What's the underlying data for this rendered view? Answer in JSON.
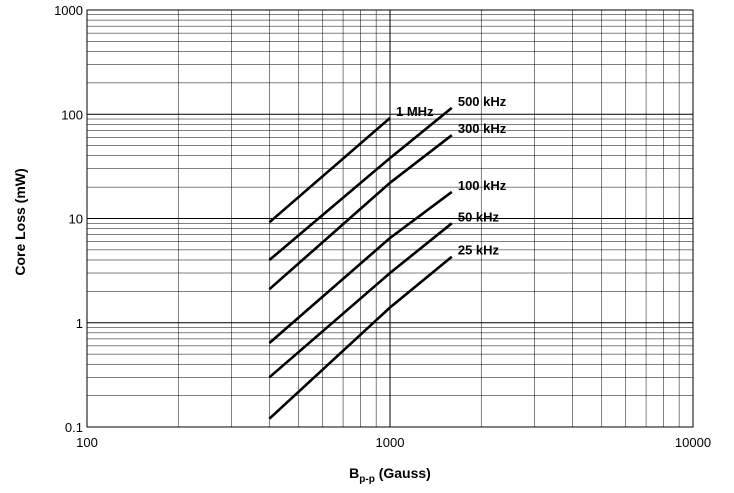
{
  "chart_data": {
    "type": "line",
    "xscale": "log",
    "yscale": "log",
    "xlim": [
      100,
      10000
    ],
    "ylim": [
      0.1,
      1000
    ],
    "grid": true,
    "xlabel": {
      "main": "B",
      "sub": "p-p",
      "rest": " (Gauss)"
    },
    "ylabel": "Core Loss (mW)",
    "x_ticks": [
      {
        "value": 100,
        "label": "100"
      },
      {
        "value": 1000,
        "label": "1000"
      },
      {
        "value": 10000,
        "label": "10000"
      }
    ],
    "y_ticks": [
      {
        "value": 0.1,
        "label": "0.1"
      },
      {
        "value": 1,
        "label": "1"
      },
      {
        "value": 10,
        "label": "10"
      },
      {
        "value": 100,
        "label": "100"
      },
      {
        "value": 1000,
        "label": "1000"
      }
    ],
    "series": [
      {
        "name": "1 MHz",
        "x": [
          400,
          1000
        ],
        "y": [
          9.2,
          92
        ]
      },
      {
        "name": "500 kHz",
        "x": [
          400,
          1000,
          1600
        ],
        "y": [
          4.0,
          38,
          115
        ]
      },
      {
        "name": "300 kHz",
        "x": [
          400,
          1000,
          1600
        ],
        "y": [
          2.1,
          22,
          63
        ]
      },
      {
        "name": "100 kHz",
        "x": [
          400,
          1000,
          1600
        ],
        "y": [
          0.64,
          6.5,
          18
        ]
      },
      {
        "name": "50 kHz",
        "x": [
          400,
          1000,
          1600
        ],
        "y": [
          0.3,
          3.0,
          9.0
        ]
      },
      {
        "name": "25 kHz",
        "x": [
          400,
          1000,
          1600
        ],
        "y": [
          0.12,
          1.4,
          4.3
        ]
      }
    ]
  }
}
